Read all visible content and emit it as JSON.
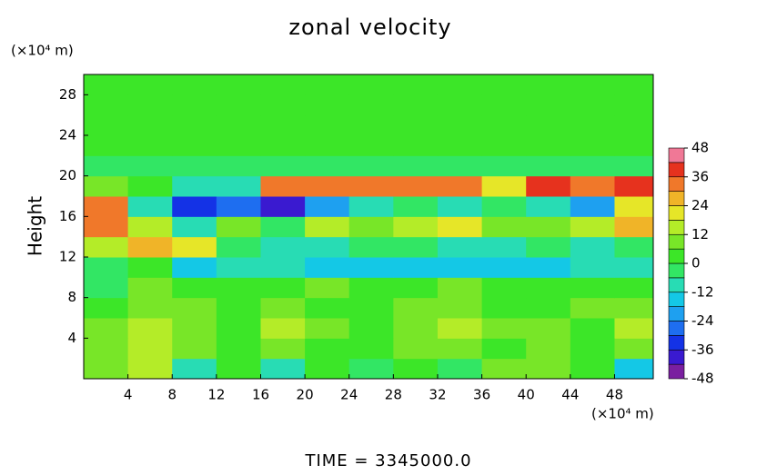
{
  "chart_data": {
    "type": "heatmap",
    "title": "zonal velocity",
    "y_unit": "(×10⁴ m)",
    "x_unit": "(×10⁴ m)",
    "y_label": "Height",
    "footer": "TIME = 3345000.0",
    "x": [
      2,
      6,
      10,
      14,
      18,
      22,
      26,
      30,
      34,
      38,
      42,
      46,
      50
    ],
    "y": [
      1,
      3,
      5,
      7,
      9,
      11,
      13,
      15,
      17,
      19,
      21,
      23,
      25,
      27,
      29
    ],
    "values": [
      [
        6,
        12,
        -8,
        4,
        -10,
        2,
        -6,
        4,
        -4,
        6,
        10,
        2,
        -14
      ],
      [
        8,
        14,
        6,
        2,
        10,
        4,
        2,
        6,
        8,
        4,
        6,
        2,
        10
      ],
      [
        6,
        16,
        10,
        4,
        12,
        8,
        4,
        10,
        12,
        6,
        8,
        4,
        14
      ],
      [
        4,
        10,
        6,
        2,
        8,
        4,
        2,
        6,
        10,
        4,
        2,
        6,
        8
      ],
      [
        -2,
        6,
        2,
        0,
        4,
        6,
        2,
        4,
        6,
        2,
        0,
        4,
        2
      ],
      [
        -4,
        0,
        -14,
        -8,
        -12,
        -14,
        -16,
        -18,
        -16,
        -14,
        -18,
        -12,
        -10
      ],
      [
        12,
        28,
        20,
        -6,
        -8,
        -12,
        -4,
        -6,
        -10,
        -8,
        -6,
        -12,
        -4
      ],
      [
        30,
        16,
        -10,
        8,
        -6,
        14,
        10,
        14,
        18,
        10,
        6,
        14,
        26
      ],
      [
        30,
        -10,
        -36,
        -30,
        -40,
        -20,
        -10,
        -6,
        -8,
        -4,
        -10,
        -24,
        20
      ],
      [
        10,
        0,
        -8,
        -12,
        30,
        32,
        30,
        34,
        32,
        20,
        36,
        30,
        36
      ],
      [
        -2,
        -2,
        -2,
        -2,
        -2,
        -2,
        -2,
        -2,
        -2,
        -2,
        -2,
        -2,
        -2
      ],
      [
        2,
        2,
        2,
        2,
        2,
        2,
        2,
        2,
        2,
        2,
        2,
        2,
        2
      ],
      [
        2,
        2,
        2,
        2,
        2,
        2,
        2,
        2,
        2,
        2,
        2,
        2,
        2
      ],
      [
        2,
        2,
        2,
        2,
        2,
        2,
        2,
        2,
        2,
        2,
        2,
        2,
        2
      ],
      [
        2,
        2,
        2,
        2,
        2,
        2,
        2,
        2,
        2,
        2,
        2,
        2,
        2
      ]
    ],
    "xlim": [
      0,
      51.5
    ],
    "ylim": [
      0,
      30
    ],
    "xticks": [
      4,
      8,
      12,
      16,
      20,
      24,
      28,
      32,
      36,
      40,
      44,
      48
    ],
    "yticks": [
      4,
      8,
      12,
      16,
      20,
      24,
      28
    ],
    "colorbar": {
      "levels": [
        -48,
        -42,
        -36,
        -30,
        -24,
        -18,
        -12,
        -6,
        0,
        6,
        12,
        18,
        24,
        30,
        36,
        42,
        48
      ],
      "colors": [
        "#7a1fa0",
        "#3a1ad0",
        "#1432e6",
        "#1e6ef0",
        "#1ea0f0",
        "#14c8e6",
        "#28dcb4",
        "#32e664",
        "#3ce628",
        "#78e628",
        "#b4ec28",
        "#e6e628",
        "#f0b428",
        "#f0782a",
        "#e6321e",
        "#f07896"
      ],
      "ticks": [
        48,
        36,
        24,
        12,
        0,
        -12,
        -24,
        -36,
        -48
      ]
    }
  }
}
